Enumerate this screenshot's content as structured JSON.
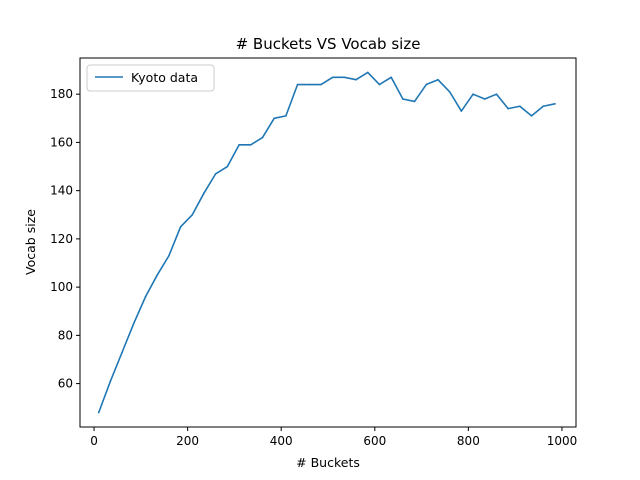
{
  "chart_data": {
    "type": "line",
    "title": "# Buckets VS Vocab size",
    "xlabel": "# Buckets",
    "ylabel": "Vocab size",
    "xlim": [
      -30,
      1030
    ],
    "ylim": [
      42,
      195
    ],
    "xticks": [
      0,
      200,
      400,
      600,
      800,
      1000
    ],
    "yticks": [
      60,
      80,
      100,
      120,
      140,
      160,
      180
    ],
    "grid": false,
    "legend": "upper-left",
    "colors": {
      "series": "#1f77b4"
    },
    "series": [
      {
        "name": "Kyoto data",
        "x": [
          10,
          35,
          60,
          85,
          110,
          135,
          160,
          185,
          210,
          235,
          260,
          285,
          310,
          335,
          360,
          385,
          410,
          435,
          460,
          485,
          510,
          535,
          560,
          585,
          610,
          635,
          660,
          685,
          710,
          735,
          760,
          785,
          810,
          835,
          860,
          885,
          910,
          935,
          960,
          985
        ],
        "values": [
          48,
          61,
          73,
          85,
          96,
          105,
          113,
          125,
          130,
          139,
          147,
          150,
          159,
          159,
          162,
          170,
          171,
          184,
          184,
          184,
          187,
          187,
          186,
          189,
          184,
          187,
          178,
          177,
          184,
          186,
          181,
          173,
          180,
          178,
          180,
          174,
          175,
          171,
          175,
          176
        ]
      }
    ]
  }
}
